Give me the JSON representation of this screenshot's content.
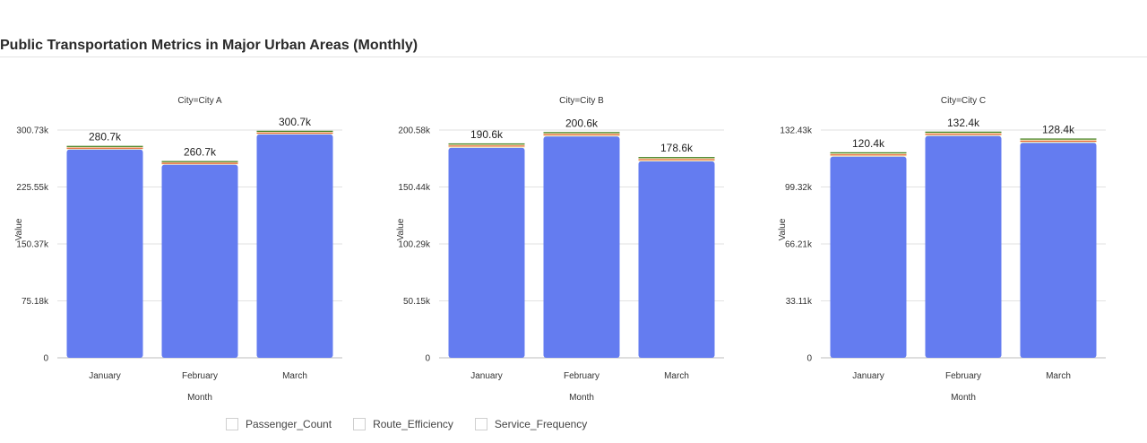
{
  "page": {
    "title": "Public Transportation Metrics in Major Urban Areas (Monthly)"
  },
  "chart_data": {
    "type": "bar",
    "stacked": true,
    "title": "Public Transportation Metrics in Major Urban Areas (Monthly)",
    "xlabel": "Month",
    "ylabel": "Value",
    "categories": [
      "January",
      "February",
      "March"
    ],
    "colors": {
      "Passenger_Count": "#647cf0",
      "Route_Efficiency": "#e8562b",
      "Service_Frequency": "#3e7d1d",
      "gap": "#f2f0c4"
    },
    "legend": [
      {
        "name": "Passenger_Count"
      },
      {
        "name": "Route_Efficiency"
      },
      {
        "name": "Service_Frequency"
      }
    ],
    "panels": [
      {
        "facet": "City=City A",
        "ylim": [
          0,
          300730
        ],
        "ticks": [
          {
            "value": 0,
            "label": "0"
          },
          {
            "value": 75182,
            "label": "75.18k"
          },
          {
            "value": 150365,
            "label": "150.37k"
          },
          {
            "value": 225547,
            "label": "225.55k"
          },
          {
            "value": 300730,
            "label": "300.73k"
          }
        ],
        "series": [
          {
            "name": "Passenger_Count",
            "values": [
              275000,
              255000,
              295000
            ]
          },
          {
            "name": "Route_Efficiency",
            "values": [
              2500,
              2500,
              2500
            ]
          },
          {
            "name": "Service_Frequency",
            "values": [
              2300,
              2300,
              2300
            ]
          }
        ],
        "totals": [
          "280.7k",
          "260.7k",
          "300.7k"
        ]
      },
      {
        "facet": "City=City B",
        "ylim": [
          0,
          200580
        ],
        "ticks": [
          {
            "value": 0,
            "label": "0"
          },
          {
            "value": 50145,
            "label": "50.15k"
          },
          {
            "value": 100290,
            "label": "100.29k"
          },
          {
            "value": 150435,
            "label": "150.44k"
          },
          {
            "value": 200580,
            "label": "200.58k"
          }
        ],
        "series": [
          {
            "name": "Passenger_Count",
            "values": [
              185000,
              195000,
              173000
            ]
          },
          {
            "name": "Route_Efficiency",
            "values": [
              2000,
              2000,
              2000
            ]
          },
          {
            "name": "Service_Frequency",
            "values": [
              1800,
              1800,
              1800
            ]
          }
        ],
        "totals": [
          "190.6k",
          "200.6k",
          "178.6k"
        ]
      },
      {
        "facet": "City=City C",
        "ylim": [
          0,
          132430
        ],
        "ticks": [
          {
            "value": 0,
            "label": "0"
          },
          {
            "value": 33107,
            "label": "33.11k"
          },
          {
            "value": 66215,
            "label": "66.21k"
          },
          {
            "value": 99322,
            "label": "99.32k"
          },
          {
            "value": 132430,
            "label": "132.43k"
          }
        ],
        "series": [
          {
            "name": "Passenger_Count",
            "values": [
              117000,
              129000,
              125000
            ]
          },
          {
            "name": "Route_Efficiency",
            "values": [
              1300,
              1300,
              1300
            ]
          },
          {
            "name": "Service_Frequency",
            "values": [
              1200,
              1200,
              1200
            ]
          }
        ],
        "totals": [
          "120.4k",
          "132.4k",
          "128.4k"
        ]
      }
    ]
  }
}
